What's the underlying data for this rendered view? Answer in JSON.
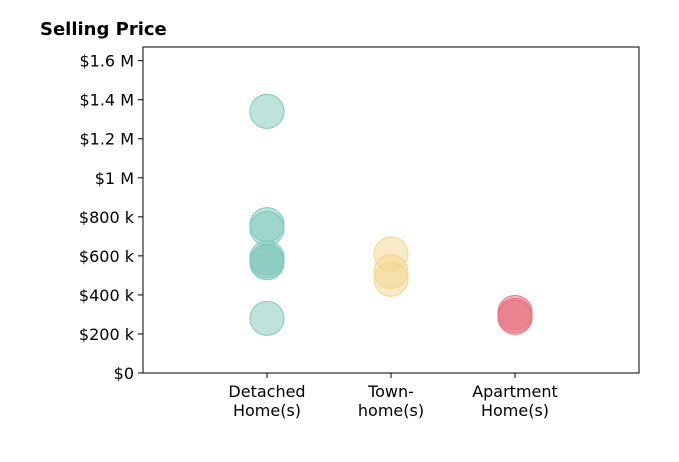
{
  "chart_data": {
    "type": "scatter",
    "title": "Selling Price",
    "xlabel": "",
    "ylabel": "",
    "ylim": [
      0,
      1670000
    ],
    "xlim": [
      0,
      4
    ],
    "grid": false,
    "y_ticks": [
      {
        "value": 0,
        "label": "$0"
      },
      {
        "value": 200000,
        "label": "$200 k"
      },
      {
        "value": 400000,
        "label": "$400 k"
      },
      {
        "value": 600000,
        "label": "$600 k"
      },
      {
        "value": 800000,
        "label": "$800 k"
      },
      {
        "value": 1000000,
        "label": "$1 M"
      },
      {
        "value": 1200000,
        "label": "$1.2 M"
      },
      {
        "value": 1400000,
        "label": "$1.4 M"
      },
      {
        "value": 1600000,
        "label": "$1.6 M"
      }
    ],
    "categories": [
      {
        "x": 1,
        "lines": [
          "Detached",
          "Home(s)"
        ]
      },
      {
        "x": 2,
        "lines": [
          "Town-",
          "home(s)"
        ]
      },
      {
        "x": 3,
        "lines": [
          "Apartment",
          "Home(s)"
        ]
      }
    ],
    "series": [
      {
        "color": "#7ec8bc",
        "x": 1,
        "values": [
          1340000,
          760000,
          740000,
          590000,
          575000,
          565000,
          280000
        ]
      },
      {
        "color": "#f2d58e",
        "x": 2,
        "values": [
          610000,
          520000,
          480000
        ]
      },
      {
        "color": "#e8737f",
        "x": 3,
        "values": [
          310000,
          295000,
          285000
        ]
      }
    ]
  }
}
